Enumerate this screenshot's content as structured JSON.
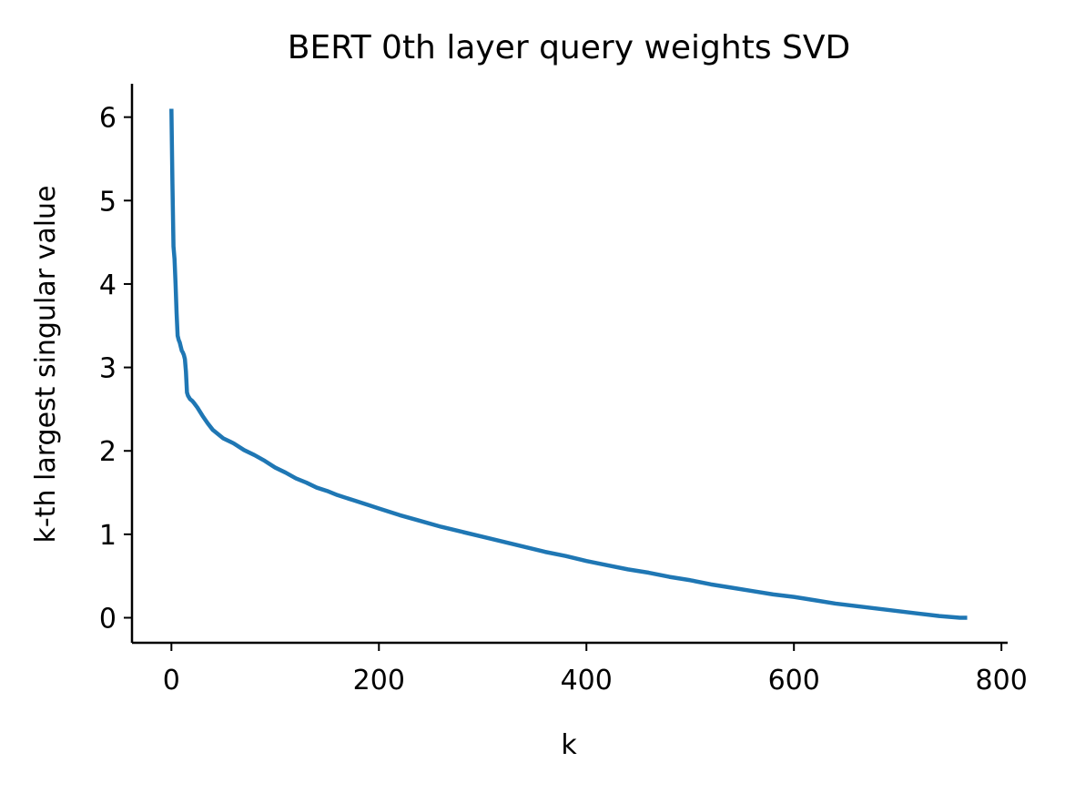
{
  "chart_data": {
    "type": "line",
    "title": "BERT 0th layer query weights SVD",
    "xlabel": "k",
    "ylabel": "k-th largest singular value",
    "xlim": [
      -38,
      806
    ],
    "ylim": [
      -0.3,
      6.4
    ],
    "xticks": [
      0,
      200,
      400,
      600,
      800
    ],
    "yticks": [
      0,
      1,
      2,
      3,
      4,
      5,
      6
    ],
    "grid": false,
    "legend": "none",
    "spines": "left-bottom",
    "series": [
      {
        "color": "#1f77b4",
        "x": [
          0,
          1,
          2,
          3,
          4,
          5,
          6,
          7,
          8,
          9,
          10,
          11,
          12,
          13,
          14,
          15,
          16,
          17,
          18,
          20,
          22,
          25,
          28,
          30,
          35,
          40,
          45,
          50,
          60,
          70,
          80,
          90,
          100,
          110,
          120,
          130,
          140,
          150,
          160,
          175,
          190,
          200,
          220,
          240,
          260,
          280,
          300,
          320,
          340,
          360,
          380,
          400,
          420,
          440,
          460,
          480,
          500,
          520,
          540,
          560,
          580,
          600,
          620,
          640,
          660,
          680,
          700,
          720,
          740,
          760,
          767
        ],
        "y": [
          6.1,
          5.2,
          4.45,
          4.3,
          4.0,
          3.65,
          3.38,
          3.33,
          3.3,
          3.25,
          3.2,
          3.18,
          3.15,
          3.1,
          2.95,
          2.7,
          2.66,
          2.64,
          2.62,
          2.6,
          2.57,
          2.52,
          2.46,
          2.42,
          2.33,
          2.25,
          2.2,
          2.15,
          2.09,
          2.01,
          1.95,
          1.88,
          1.8,
          1.74,
          1.67,
          1.62,
          1.56,
          1.52,
          1.47,
          1.41,
          1.35,
          1.31,
          1.23,
          1.16,
          1.09,
          1.03,
          0.97,
          0.91,
          0.85,
          0.79,
          0.74,
          0.68,
          0.63,
          0.58,
          0.54,
          0.49,
          0.45,
          0.4,
          0.36,
          0.32,
          0.28,
          0.25,
          0.21,
          0.17,
          0.14,
          0.11,
          0.08,
          0.05,
          0.02,
          0.0,
          0.0
        ]
      }
    ]
  }
}
